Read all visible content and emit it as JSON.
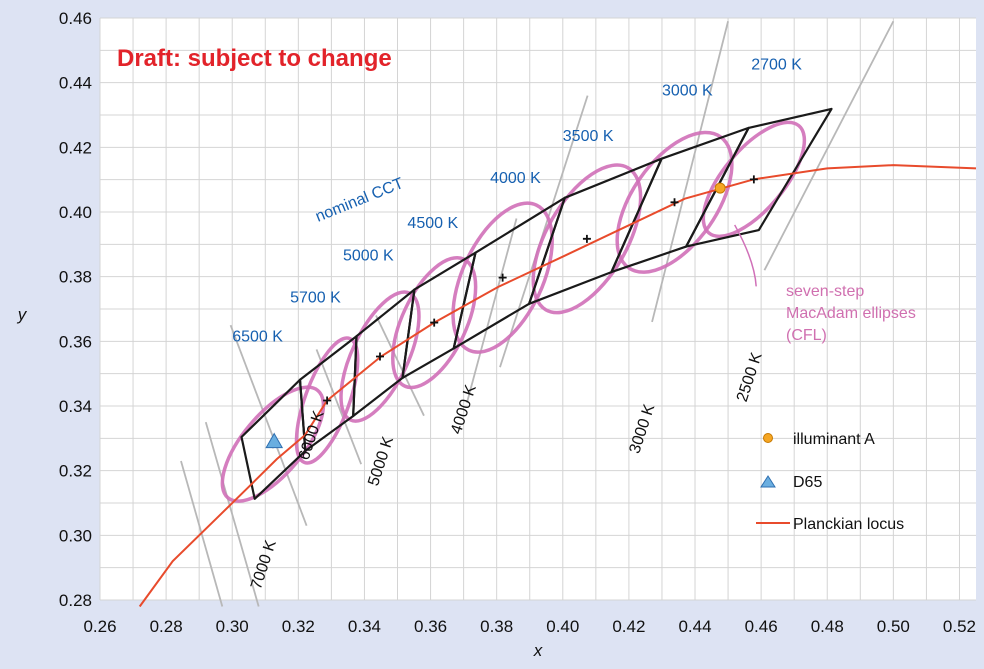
{
  "colors": {
    "background": "#dde3f3",
    "plot": "#ffffff",
    "grid": "#d4d4d4",
    "locus": "#e84b2c",
    "ellipse": "#d070b8",
    "isotherm": "#b8b8b8",
    "quad": "#1a1a1a",
    "cct_text": "#1660b0",
    "draft_text": "#e2232a",
    "illuminant_a": "#f5a623",
    "d65": "#5aa0d8"
  },
  "chart_data": {
    "type": "scatter",
    "title": "",
    "annotation": "Draft: subject to change",
    "xlabel": "x",
    "ylabel": "y",
    "xlim": [
      0.26,
      0.525
    ],
    "ylim": [
      0.28,
      0.46
    ],
    "grid": true,
    "x_ticks": [
      "0.26",
      "0.28",
      "0.30",
      "0.32",
      "0.34",
      "0.36",
      "0.38",
      "0.40",
      "0.42",
      "0.44",
      "0.46",
      "0.48",
      "0.50",
      "0.52"
    ],
    "y_ticks": [
      "0.28",
      "0.30",
      "0.32",
      "0.34",
      "0.36",
      "0.38",
      "0.40",
      "0.42",
      "0.44",
      "0.46"
    ],
    "planckian_locus": [
      [
        0.272,
        0.278
      ],
      [
        0.282,
        0.292
      ],
      [
        0.295,
        0.305
      ],
      [
        0.305,
        0.315
      ],
      [
        0.3135,
        0.3236
      ],
      [
        0.322,
        0.331
      ],
      [
        0.3287,
        0.3417
      ],
      [
        0.345,
        0.3553
      ],
      [
        0.3611,
        0.3658
      ],
      [
        0.3804,
        0.3768
      ],
      [
        0.4006,
        0.3865
      ],
      [
        0.4369,
        0.4041
      ],
      [
        0.4578,
        0.4101
      ],
      [
        0.48,
        0.4135
      ],
      [
        0.5,
        0.4145
      ],
      [
        0.525,
        0.4135
      ]
    ],
    "quadrangles": [
      {
        "cct": "6500 K",
        "center": [
          0.3123,
          0.3282
        ],
        "corners": [
          [
            0.3068,
            0.3113
          ],
          [
            0.3028,
            0.3304
          ],
          [
            0.3205,
            0.3481
          ],
          [
            0.3221,
            0.3261
          ]
        ]
      },
      {
        "cct": "5700 K",
        "center": [
          0.3287,
          0.3417
        ],
        "corners": [
          [
            0.3221,
            0.3261
          ],
          [
            0.3205,
            0.3481
          ],
          [
            0.3376,
            0.3616
          ],
          [
            0.3366,
            0.3369
          ]
        ]
      },
      {
        "cct": "5000 K",
        "center": [
          0.3447,
          0.3553
        ],
        "corners": [
          [
            0.3366,
            0.3369
          ],
          [
            0.3376,
            0.3616
          ],
          [
            0.3551,
            0.376
          ],
          [
            0.3515,
            0.3487
          ]
        ]
      },
      {
        "cct": "4500 K",
        "center": [
          0.3611,
          0.3658
        ],
        "corners": [
          [
            0.3515,
            0.3487
          ],
          [
            0.3551,
            0.376
          ],
          [
            0.3736,
            0.3874
          ],
          [
            0.367,
            0.3578
          ]
        ]
      },
      {
        "cct": "4000 K",
        "center": [
          0.3818,
          0.3797
        ],
        "corners": [
          [
            0.367,
            0.3578
          ],
          [
            0.3736,
            0.3874
          ],
          [
            0.4006,
            0.4044
          ],
          [
            0.3898,
            0.3716
          ]
        ]
      },
      {
        "cct": "3500 K",
        "center": [
          0.4073,
          0.3917
        ],
        "corners": [
          [
            0.3898,
            0.3716
          ],
          [
            0.4006,
            0.4044
          ],
          [
            0.4299,
            0.4165
          ],
          [
            0.4147,
            0.3814
          ]
        ]
      },
      {
        "cct": "3000 K",
        "center": [
          0.4338,
          0.403
        ],
        "corners": [
          [
            0.4147,
            0.3814
          ],
          [
            0.4299,
            0.4165
          ],
          [
            0.4562,
            0.426
          ],
          [
            0.4373,
            0.3893
          ]
        ]
      },
      {
        "cct": "2700 K",
        "center": [
          0.4578,
          0.4101
        ],
        "corners": [
          [
            0.4373,
            0.3893
          ],
          [
            0.4562,
            0.426
          ],
          [
            0.4813,
            0.4319
          ],
          [
            0.4593,
            0.3944
          ]
        ]
      }
    ],
    "isotherms": [
      {
        "label": "7000 K"
      },
      {
        "label": "6000 K"
      },
      {
        "label": "5000 K"
      },
      {
        "label": "4000 K"
      },
      {
        "label": "3000 K"
      },
      {
        "label": "2500 K"
      }
    ],
    "ellipse_label": [
      "seven-step",
      "MacAdam ellipses",
      "(CFL)"
    ],
    "nominal_cct_label": "nominal CCT",
    "points": {
      "illuminant_a": [
        0.4476,
        0.4074
      ],
      "d65": [
        0.3127,
        0.329
      ]
    },
    "legend": {
      "position": "bottom-right",
      "entries": [
        {
          "key": "illuminant_a",
          "label": "illuminant A"
        },
        {
          "key": "d65",
          "label": "D65"
        },
        {
          "key": "locus",
          "label": "Planckian locus"
        }
      ]
    }
  }
}
